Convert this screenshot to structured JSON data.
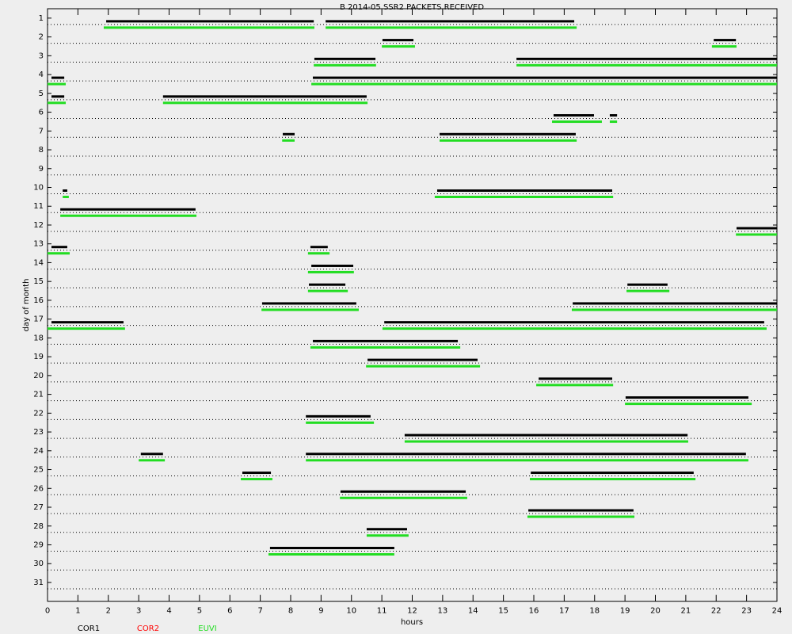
{
  "chart_data": {
    "type": "timeline",
    "title": "B  2014-05 SSR2 PACKETS RECEIVED",
    "x_label": "hours",
    "y_label": "day of month",
    "xlim": [
      0,
      24
    ],
    "xticks": [
      0,
      1,
      2,
      3,
      4,
      5,
      6,
      7,
      8,
      9,
      10,
      11,
      12,
      13,
      14,
      15,
      16,
      17,
      18,
      19,
      20,
      21,
      22,
      23,
      24
    ],
    "ylim": [
      0.5,
      32
    ],
    "yticks": [
      1,
      2,
      3,
      4,
      5,
      6,
      7,
      8,
      9,
      10,
      11,
      12,
      13,
      14,
      15,
      16,
      17,
      18,
      19,
      20,
      21,
      22,
      23,
      24,
      25,
      26,
      27,
      28,
      29,
      30,
      31
    ],
    "y_inverted": true,
    "grid": true,
    "series": [
      {
        "name": "COR1",
        "color": "#000000",
        "days": [
          1,
          1,
          2,
          2,
          3,
          3,
          4,
          4,
          5,
          5,
          6,
          6,
          7,
          7,
          10,
          10,
          11,
          12,
          13,
          13,
          14,
          15,
          15,
          16,
          16,
          17,
          17,
          18,
          19,
          20,
          21,
          22,
          23,
          24,
          24,
          25,
          25,
          26,
          27,
          28,
          29
        ],
        "starts": [
          1.93,
          9.15,
          11.02,
          21.92,
          8.78,
          15.43,
          0.13,
          8.73,
          0.13,
          3.8,
          16.65,
          18.5,
          7.74,
          12.9,
          0.5,
          12.82,
          0.42,
          22.67,
          0.13,
          8.65,
          8.68,
          8.6,
          19.08,
          7.06,
          17.28,
          0.13,
          11.08,
          8.73,
          10.53,
          16.16,
          19.02,
          8.5,
          11.75,
          3.07,
          8.5,
          6.41,
          15.9,
          9.64,
          15.82,
          10.5,
          7.32
        ],
        "ends": [
          8.76,
          17.33,
          12.04,
          22.65,
          10.79,
          24,
          0.55,
          24,
          0.55,
          10.5,
          17.98,
          18.74,
          8.13,
          17.38,
          0.65,
          18.58,
          4.87,
          24,
          0.65,
          9.22,
          10.06,
          9.8,
          20.4,
          10.16,
          24,
          2.5,
          23.58,
          13.5,
          14.15,
          18.58,
          23.06,
          10.63,
          21.06,
          3.8,
          22.98,
          7.35,
          21.26,
          13.76,
          19.28,
          11.83,
          11.41
        ]
      },
      {
        "name": "COR2",
        "color": "#ff0000",
        "days": [],
        "starts": [],
        "ends": []
      },
      {
        "name": "EUVI",
        "color": "#22dd22",
        "days": [
          1,
          1,
          2,
          2,
          3,
          3,
          4,
          4,
          5,
          5,
          6,
          6,
          7,
          7,
          10,
          10,
          11,
          12,
          13,
          13,
          14,
          15,
          15,
          16,
          16,
          17,
          17,
          18,
          19,
          20,
          21,
          22,
          23,
          24,
          24,
          25,
          25,
          26,
          27,
          28,
          29
        ],
        "starts": [
          1.85,
          9.15,
          11.0,
          21.86,
          8.76,
          15.43,
          0,
          8.68,
          0,
          3.8,
          16.6,
          18.5,
          7.72,
          12.9,
          0.5,
          12.74,
          0.42,
          22.65,
          0,
          8.57,
          8.57,
          8.57,
          19.05,
          7.04,
          17.25,
          0,
          11.02,
          8.65,
          10.48,
          16.08,
          19.0,
          8.5,
          11.75,
          3.0,
          8.5,
          6.36,
          15.87,
          9.62,
          15.79,
          10.5,
          7.27
        ],
        "ends": [
          8.78,
          17.41,
          12.09,
          22.67,
          10.81,
          24,
          0.6,
          24,
          0.6,
          10.53,
          18.24,
          18.74,
          8.13,
          17.41,
          0.7,
          18.61,
          4.9,
          24,
          0.73,
          9.28,
          10.08,
          9.88,
          20.46,
          10.24,
          24,
          2.55,
          23.66,
          13.58,
          14.23,
          18.61,
          23.17,
          10.74,
          21.08,
          3.86,
          23.06,
          7.4,
          21.32,
          13.81,
          19.31,
          11.88,
          11.41
        ]
      }
    ]
  }
}
